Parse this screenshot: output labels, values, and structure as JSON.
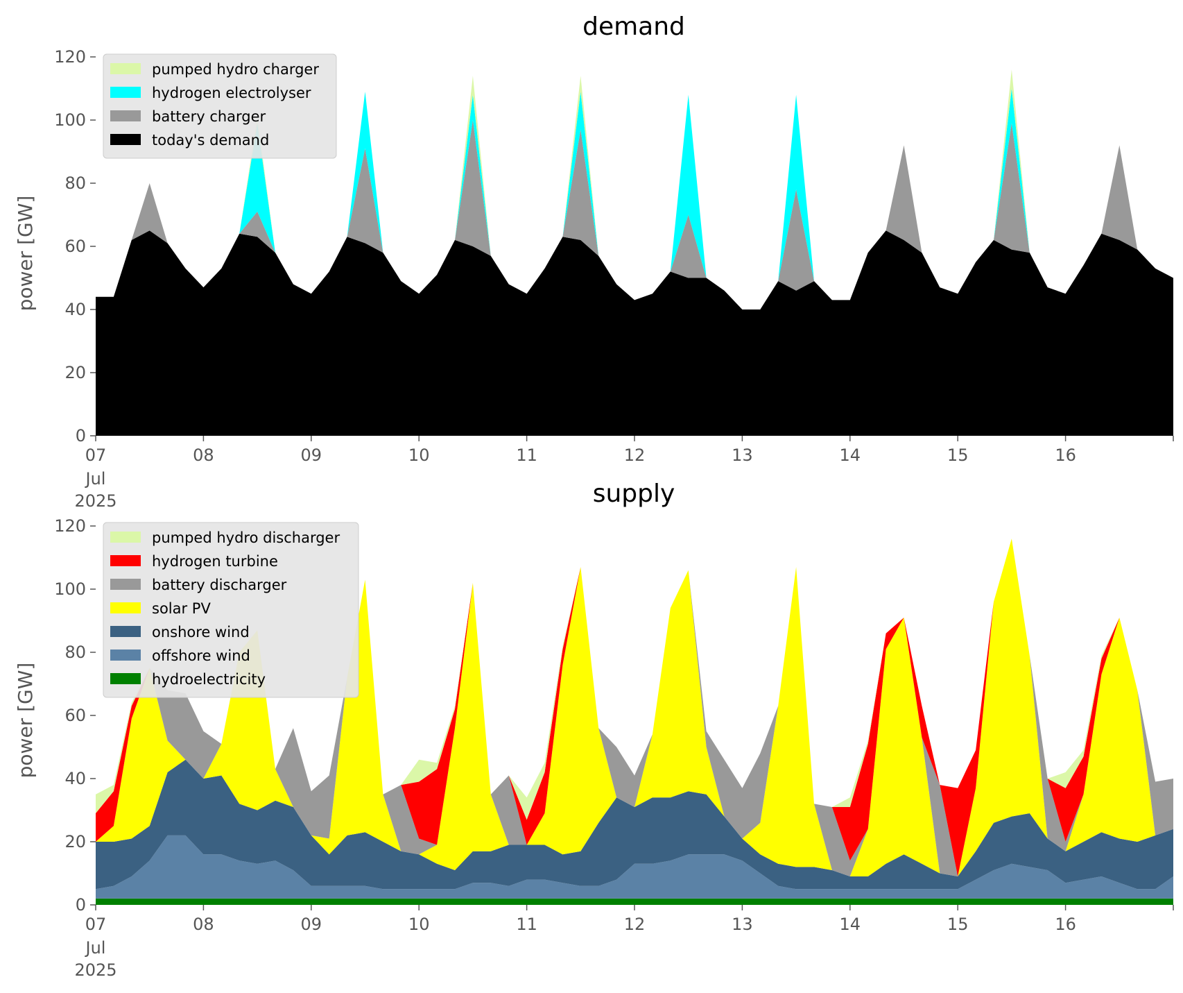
{
  "chart_data": [
    {
      "type": "area",
      "stacked": true,
      "title": "demand",
      "ylabel": "power [GW]",
      "xlabel": "",
      "ylim": [
        0,
        120
      ],
      "yticks": [
        0,
        20,
        40,
        60,
        80,
        100,
        120
      ],
      "xlim": [
        "2025-07-07T00:00",
        "2025-07-17T00:00"
      ],
      "xticks": [
        {
          "x": "2025-07-07",
          "label": "07",
          "sub": [
            "Jul",
            "2025"
          ]
        },
        {
          "x": "2025-07-08",
          "label": "08"
        },
        {
          "x": "2025-07-09",
          "label": "09"
        },
        {
          "x": "2025-07-10",
          "label": "10"
        },
        {
          "x": "2025-07-11",
          "label": "11"
        },
        {
          "x": "2025-07-12",
          "label": "12"
        },
        {
          "x": "2025-07-13",
          "label": "13"
        },
        {
          "x": "2025-07-14",
          "label": "14"
        },
        {
          "x": "2025-07-15",
          "label": "15"
        },
        {
          "x": "2025-07-16",
          "label": "16"
        }
      ],
      "grid": false,
      "legend_position": "upper-left",
      "legend": [
        "pumped hydro charger",
        "hydrogen electrolyser",
        "battery charger",
        "today's demand"
      ],
      "x": [
        "2025-07-07T00:00",
        "2025-07-07T04:00",
        "2025-07-07T08:00",
        "2025-07-07T12:00",
        "2025-07-07T16:00",
        "2025-07-07T20:00",
        "2025-07-08T00:00",
        "2025-07-08T04:00",
        "2025-07-08T08:00",
        "2025-07-08T12:00",
        "2025-07-08T16:00",
        "2025-07-08T20:00",
        "2025-07-09T00:00",
        "2025-07-09T04:00",
        "2025-07-09T08:00",
        "2025-07-09T12:00",
        "2025-07-09T16:00",
        "2025-07-09T20:00",
        "2025-07-10T00:00",
        "2025-07-10T04:00",
        "2025-07-10T08:00",
        "2025-07-10T12:00",
        "2025-07-10T16:00",
        "2025-07-10T20:00",
        "2025-07-11T00:00",
        "2025-07-11T04:00",
        "2025-07-11T08:00",
        "2025-07-11T12:00",
        "2025-07-11T16:00",
        "2025-07-11T20:00",
        "2025-07-12T00:00",
        "2025-07-12T04:00",
        "2025-07-12T08:00",
        "2025-07-12T12:00",
        "2025-07-12T16:00",
        "2025-07-12T20:00",
        "2025-07-13T00:00",
        "2025-07-13T04:00",
        "2025-07-13T08:00",
        "2025-07-13T12:00",
        "2025-07-13T16:00",
        "2025-07-13T20:00",
        "2025-07-14T00:00",
        "2025-07-14T04:00",
        "2025-07-14T08:00",
        "2025-07-14T12:00",
        "2025-07-14T16:00",
        "2025-07-14T20:00",
        "2025-07-15T00:00",
        "2025-07-15T04:00",
        "2025-07-15T08:00",
        "2025-07-15T12:00",
        "2025-07-15T16:00",
        "2025-07-15T20:00",
        "2025-07-16T00:00",
        "2025-07-16T04:00",
        "2025-07-16T08:00",
        "2025-07-16T12:00",
        "2025-07-16T16:00",
        "2025-07-16T20:00",
        "2025-07-17T00:00"
      ],
      "series": [
        {
          "name": "today's demand",
          "color": "#000000",
          "values": [
            44,
            44,
            62,
            65,
            61,
            53,
            47,
            53,
            64,
            63,
            58,
            48,
            45,
            52,
            63,
            61,
            58,
            49,
            45,
            51,
            62,
            60,
            57,
            48,
            45,
            53,
            63,
            62,
            57,
            48,
            43,
            45,
            52,
            50,
            50,
            46,
            40,
            40,
            49,
            46,
            49,
            43,
            43,
            58,
            65,
            62,
            58,
            47,
            45,
            55,
            62,
            59,
            58,
            47,
            45,
            54,
            64,
            62,
            59,
            53,
            50
          ]
        },
        {
          "name": "battery charger",
          "color": "#999999",
          "values": [
            0,
            0,
            0,
            15,
            0,
            0,
            0,
            0,
            0,
            8,
            0,
            0,
            0,
            0,
            0,
            30,
            0,
            0,
            0,
            0,
            0,
            40,
            0,
            0,
            0,
            0,
            0,
            35,
            0,
            0,
            0,
            0,
            0,
            20,
            0,
            0,
            0,
            0,
            0,
            32,
            0,
            0,
            0,
            0,
            0,
            30,
            0,
            0,
            0,
            0,
            0,
            40,
            0,
            0,
            0,
            0,
            0,
            30,
            0,
            0,
            0
          ]
        },
        {
          "name": "hydrogen electrolyser",
          "color": "#00ffff",
          "values": [
            0,
            0,
            0,
            0,
            0,
            0,
            0,
            0,
            0,
            28,
            0,
            0,
            0,
            0,
            0,
            18,
            0,
            0,
            0,
            0,
            0,
            8,
            0,
            0,
            0,
            0,
            0,
            12,
            0,
            0,
            0,
            0,
            0,
            38,
            0,
            0,
            0,
            0,
            0,
            30,
            0,
            0,
            0,
            0,
            0,
            0,
            0,
            0,
            0,
            0,
            0,
            11,
            0,
            0,
            0,
            0,
            0,
            0,
            0,
            0,
            0
          ]
        },
        {
          "name": "pumped hydro charger",
          "color": "#dbf7a8",
          "values": [
            0,
            0,
            0,
            0,
            0,
            0,
            0,
            0,
            0,
            2,
            0,
            0,
            0,
            0,
            0,
            0,
            0,
            0,
            0,
            0,
            0,
            6,
            0,
            0,
            0,
            0,
            0,
            5,
            0,
            0,
            0,
            0,
            0,
            0,
            0,
            0,
            0,
            0,
            0,
            0,
            0,
            0,
            0,
            0,
            0,
            0,
            0,
            0,
            0,
            0,
            0,
            6,
            0,
            0,
            0,
            0,
            0,
            0,
            0,
            0,
            0
          ]
        }
      ]
    },
    {
      "type": "area",
      "stacked": true,
      "title": "supply",
      "ylabel": "power [GW]",
      "xlabel": "",
      "ylim": [
        0,
        120
      ],
      "yticks": [
        0,
        20,
        40,
        60,
        80,
        100,
        120
      ],
      "xlim": [
        "2025-07-07T00:00",
        "2025-07-17T00:00"
      ],
      "xticks": [
        {
          "x": "2025-07-07",
          "label": "07",
          "sub": [
            "Jul",
            "2025"
          ]
        },
        {
          "x": "2025-07-08",
          "label": "08"
        },
        {
          "x": "2025-07-09",
          "label": "09"
        },
        {
          "x": "2025-07-10",
          "label": "10"
        },
        {
          "x": "2025-07-11",
          "label": "11"
        },
        {
          "x": "2025-07-12",
          "label": "12"
        },
        {
          "x": "2025-07-13",
          "label": "13"
        },
        {
          "x": "2025-07-14",
          "label": "14"
        },
        {
          "x": "2025-07-15",
          "label": "15"
        },
        {
          "x": "2025-07-16",
          "label": "16"
        }
      ],
      "grid": false,
      "legend_position": "upper-left",
      "legend": [
        "pumped hydro discharger",
        "hydrogen turbine",
        "battery discharger",
        "solar PV",
        "onshore wind",
        "offshore wind",
        "hydroelectricity"
      ],
      "x": [
        "2025-07-07T00:00",
        "2025-07-07T04:00",
        "2025-07-07T08:00",
        "2025-07-07T12:00",
        "2025-07-07T16:00",
        "2025-07-07T20:00",
        "2025-07-08T00:00",
        "2025-07-08T04:00",
        "2025-07-08T08:00",
        "2025-07-08T12:00",
        "2025-07-08T16:00",
        "2025-07-08T20:00",
        "2025-07-09T00:00",
        "2025-07-09T04:00",
        "2025-07-09T08:00",
        "2025-07-09T12:00",
        "2025-07-09T16:00",
        "2025-07-09T20:00",
        "2025-07-10T00:00",
        "2025-07-10T04:00",
        "2025-07-10T08:00",
        "2025-07-10T12:00",
        "2025-07-10T16:00",
        "2025-07-10T20:00",
        "2025-07-11T00:00",
        "2025-07-11T04:00",
        "2025-07-11T08:00",
        "2025-07-11T12:00",
        "2025-07-11T16:00",
        "2025-07-11T20:00",
        "2025-07-12T00:00",
        "2025-07-12T04:00",
        "2025-07-12T08:00",
        "2025-07-12T12:00",
        "2025-07-12T16:00",
        "2025-07-12T20:00",
        "2025-07-13T00:00",
        "2025-07-13T04:00",
        "2025-07-13T08:00",
        "2025-07-13T12:00",
        "2025-07-13T16:00",
        "2025-07-13T20:00",
        "2025-07-14T00:00",
        "2025-07-14T04:00",
        "2025-07-14T08:00",
        "2025-07-14T12:00",
        "2025-07-14T16:00",
        "2025-07-14T20:00",
        "2025-07-15T00:00",
        "2025-07-15T04:00",
        "2025-07-15T08:00",
        "2025-07-15T12:00",
        "2025-07-15T16:00",
        "2025-07-15T20:00",
        "2025-07-16T00:00",
        "2025-07-16T04:00",
        "2025-07-16T08:00",
        "2025-07-16T12:00",
        "2025-07-16T16:00",
        "2025-07-16T20:00",
        "2025-07-17T00:00"
      ],
      "series": [
        {
          "name": "hydroelectricity",
          "color": "#008000",
          "values": [
            2,
            2,
            2,
            2,
            2,
            2,
            2,
            2,
            2,
            2,
            2,
            2,
            2,
            2,
            2,
            2,
            2,
            2,
            2,
            2,
            2,
            2,
            2,
            2,
            2,
            2,
            2,
            2,
            2,
            2,
            2,
            2,
            2,
            2,
            2,
            2,
            2,
            2,
            2,
            2,
            2,
            2,
            2,
            2,
            2,
            2,
            2,
            2,
            2,
            2,
            2,
            2,
            2,
            2,
            2,
            2,
            2,
            2,
            2,
            2,
            2
          ]
        },
        {
          "name": "offshore wind",
          "color": "#5b82a6",
          "values": [
            3,
            4,
            7,
            12,
            20,
            20,
            14,
            14,
            12,
            11,
            12,
            9,
            4,
            4,
            4,
            4,
            3,
            3,
            3,
            3,
            3,
            5,
            5,
            4,
            6,
            6,
            5,
            4,
            4,
            6,
            11,
            11,
            12,
            14,
            14,
            14,
            12,
            8,
            4,
            3,
            3,
            3,
            3,
            3,
            3,
            3,
            3,
            3,
            3,
            6,
            9,
            11,
            10,
            9,
            5,
            6,
            7,
            5,
            3,
            3,
            7
          ]
        },
        {
          "name": "onshore wind",
          "color": "#3b6182",
          "values": [
            15,
            14,
            12,
            11,
            20,
            24,
            24,
            25,
            18,
            17,
            19,
            20,
            16,
            10,
            16,
            17,
            15,
            12,
            11,
            8,
            6,
            10,
            10,
            13,
            11,
            11,
            9,
            11,
            20,
            26,
            18,
            21,
            20,
            20,
            19,
            12,
            7,
            6,
            7,
            7,
            7,
            6,
            4,
            4,
            8,
            11,
            8,
            5,
            4,
            9,
            15,
            15,
            17,
            10,
            10,
            12,
            14,
            14,
            15,
            17,
            15
          ]
        },
        {
          "name": "solar PV",
          "color": "#ffff00",
          "values": [
            0,
            5,
            38,
            50,
            10,
            0,
            0,
            10,
            48,
            57,
            10,
            0,
            0,
            5,
            50,
            80,
            15,
            0,
            0,
            6,
            45,
            85,
            18,
            0,
            0,
            10,
            60,
            90,
            30,
            0,
            0,
            20,
            60,
            70,
            15,
            0,
            0,
            10,
            50,
            95,
            20,
            0,
            0,
            15,
            68,
            75,
            40,
            0,
            0,
            20,
            70,
            88,
            50,
            0,
            0,
            15,
            50,
            70,
            48,
            0,
            0
          ]
        },
        {
          "name": "battery discharger",
          "color": "#999999",
          "values": [
            0,
            0,
            0,
            0,
            16,
            21,
            15,
            0,
            0,
            0,
            0,
            25,
            14,
            20,
            0,
            0,
            0,
            21,
            5,
            0,
            0,
            0,
            0,
            22,
            0,
            0,
            0,
            0,
            0,
            16,
            10,
            0,
            0,
            0,
            5,
            18,
            16,
            22,
            0,
            0,
            0,
            20,
            5,
            0,
            0,
            0,
            0,
            28,
            0,
            0,
            0,
            0,
            0,
            19,
            3,
            0,
            0,
            0,
            0,
            17,
            16
          ]
        },
        {
          "name": "hydrogen turbine",
          "color": "#ff0000",
          "values": [
            9,
            11,
            4,
            0,
            0,
            0,
            0,
            0,
            0,
            0,
            0,
            0,
            0,
            0,
            0,
            0,
            0,
            0,
            18,
            24,
            6,
            0,
            0,
            0,
            8,
            13,
            5,
            0,
            0,
            0,
            0,
            0,
            0,
            0,
            0,
            0,
            0,
            0,
            0,
            0,
            0,
            0,
            17,
            27,
            5,
            0,
            10,
            0,
            28,
            12,
            0,
            0,
            0,
            0,
            17,
            12,
            5,
            0,
            0,
            0,
            0
          ]
        },
        {
          "name": "pumped hydro discharger",
          "color": "#dbf7a8",
          "values": [
            6,
            2,
            1,
            0,
            0,
            0,
            0,
            0,
            0,
            0,
            0,
            0,
            0,
            0,
            0,
            0,
            0,
            0,
            7,
            2,
            1,
            0,
            0,
            0,
            7,
            3,
            1,
            0,
            0,
            0,
            0,
            0,
            0,
            0,
            0,
            0,
            0,
            0,
            0,
            0,
            0,
            0,
            3,
            1,
            0,
            0,
            0,
            0,
            0,
            0,
            0,
            0,
            0,
            0,
            5,
            2,
            1,
            0,
            0,
            0,
            0
          ]
        }
      ]
    }
  ]
}
